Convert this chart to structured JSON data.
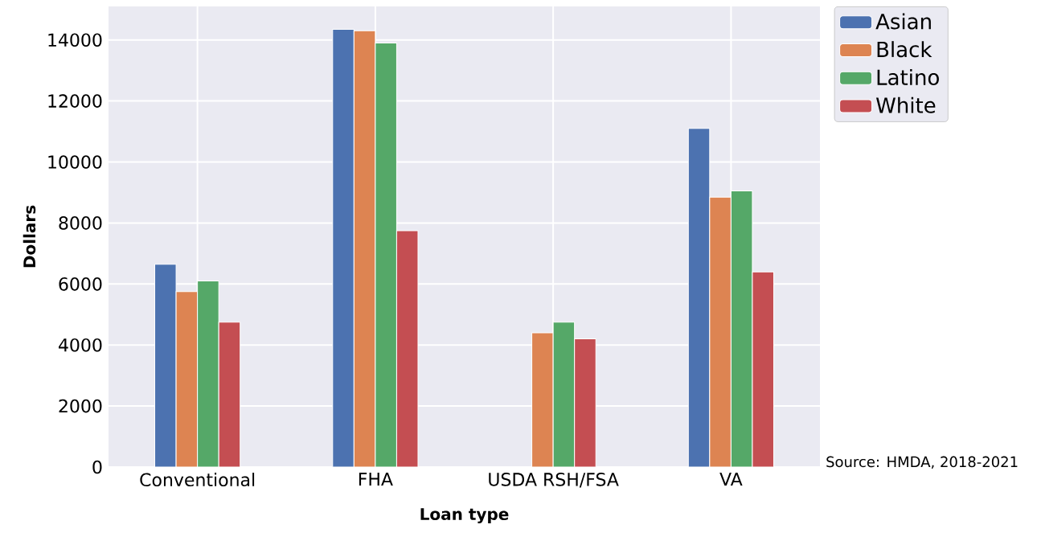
{
  "chart_data": {
    "type": "bar",
    "xlabel": "Loan type",
    "ylabel": "Dollars",
    "categories": [
      "Conventional",
      "FHA",
      "USDA RSH/FSA",
      "VA"
    ],
    "series": [
      {
        "name": "Asian",
        "color": "#4c72b0",
        "values": [
          6650,
          14350,
          null,
          11100
        ]
      },
      {
        "name": "Black",
        "color": "#dd8452",
        "values": [
          5750,
          14300,
          4400,
          8850
        ]
      },
      {
        "name": "Latino",
        "color": "#55a868",
        "values": [
          6100,
          13900,
          4750,
          9050
        ]
      },
      {
        "name": "White",
        "color": "#c44e52",
        "values": [
          4750,
          7750,
          4200,
          6400
        ]
      }
    ],
    "ylim": [
      0,
      15100
    ],
    "yticks": [
      0,
      2000,
      4000,
      6000,
      8000,
      10000,
      12000,
      14000
    ],
    "grid": true,
    "legend": "top right",
    "annotations": [
      "Source: HMDA, 2018-2021"
    ]
  }
}
